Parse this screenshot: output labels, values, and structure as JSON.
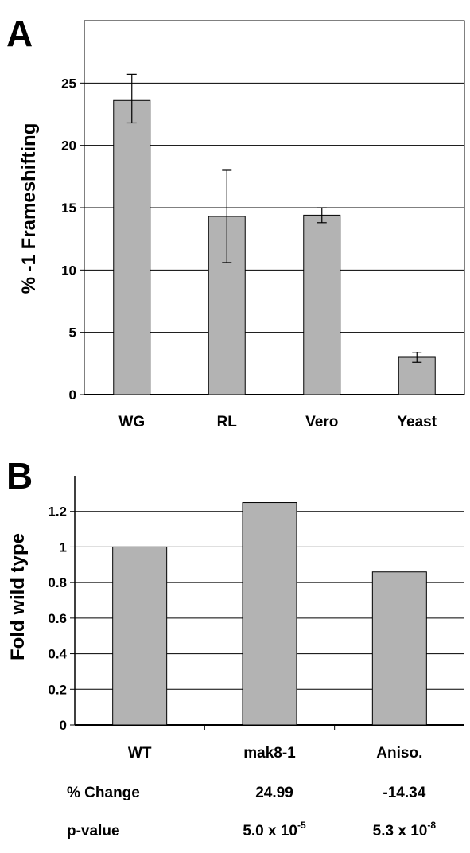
{
  "chart_data": [
    {
      "panel_label": "A",
      "type": "bar",
      "ylabel": "% -1 Frameshifting",
      "xlabel": "",
      "ylim": [
        0,
        30
      ],
      "yticks": [
        "0",
        "5",
        "10",
        "15",
        "20",
        "25"
      ],
      "ytick_values": [
        0,
        5,
        10,
        15,
        20,
        25
      ],
      "grid": true,
      "categories": [
        "WG",
        "RL",
        "Vero",
        "Yeast"
      ],
      "values": [
        23.6,
        14.3,
        14.4,
        3.0
      ],
      "error_low": [
        21.8,
        10.6,
        13.8,
        2.6
      ],
      "error_high": [
        25.7,
        18.0,
        15.0,
        3.4
      ],
      "bar_color": "#b3b3b3"
    },
    {
      "panel_label": "B",
      "type": "bar",
      "ylabel": "Fold wild type",
      "xlabel": "",
      "ylim": [
        0,
        1.4
      ],
      "yticks": [
        "0",
        "0.2",
        "0.4",
        "0.6",
        "0.8",
        "1",
        "1.2"
      ],
      "ytick_values": [
        0,
        0.2,
        0.4,
        0.6,
        0.8,
        1.0,
        1.2
      ],
      "grid": true,
      "categories": [
        "WT",
        "mak8-1",
        "Aniso."
      ],
      "values": [
        1.0,
        1.25,
        0.86
      ],
      "bar_color": "#b3b3b3",
      "table": {
        "rows": [
          {
            "label": "% Change",
            "cells": [
              "",
              "24.99",
              "-14.34"
            ]
          },
          {
            "label": "p-value",
            "cells": [
              {
                "base": "",
                "exp": ""
              },
              {
                "base": "5.0 x 10",
                "exp": "-5"
              },
              {
                "base": "5.3 x 10",
                "exp": "-8"
              }
            ]
          }
        ]
      }
    }
  ]
}
